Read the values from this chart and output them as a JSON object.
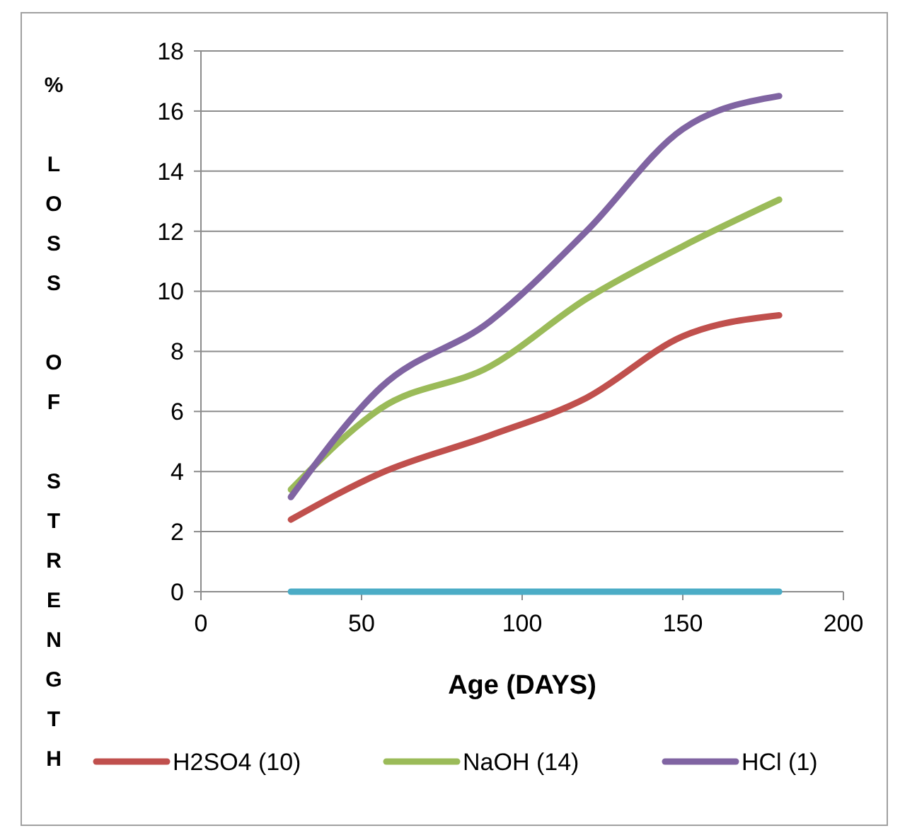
{
  "chart_data": {
    "type": "line",
    "xlabel": "Age (DAYS)",
    "ylabel": "% LOSS OF STRENGTH",
    "xlim": [
      0,
      200
    ],
    "xticks": [
      0,
      50,
      100,
      150,
      200
    ],
    "ylim": [
      0,
      18
    ],
    "yticks": [
      0,
      2,
      4,
      6,
      8,
      10,
      12,
      14,
      16,
      18
    ],
    "grid": "y",
    "legend": "bottom",
    "marker": "none",
    "line_style": "solid",
    "series": [
      {
        "name": "H2SO4 (10)",
        "color": "#c0504d",
        "x": [
          28,
          56,
          90,
          120,
          150,
          180
        ],
        "values": [
          2.4,
          3.95,
          5.2,
          6.45,
          8.5,
          9.2
        ]
      },
      {
        "name": "NaOH (14)",
        "color": "#9bbb59",
        "x": [
          28,
          56,
          90,
          120,
          150,
          180
        ],
        "values": [
          3.4,
          6.1,
          7.5,
          9.75,
          11.5,
          13.05
        ]
      },
      {
        "name": "HCl (1)",
        "color": "#8064a2",
        "x": [
          28,
          56,
          90,
          120,
          150,
          180
        ],
        "values": [
          3.15,
          6.8,
          9,
          12,
          15.4,
          16.5
        ]
      },
      {
        "color": "#4bacc6",
        "x": [
          28,
          56,
          90,
          120,
          150,
          180
        ],
        "values": [
          0,
          0,
          0,
          0,
          0,
          0
        ]
      }
    ]
  }
}
